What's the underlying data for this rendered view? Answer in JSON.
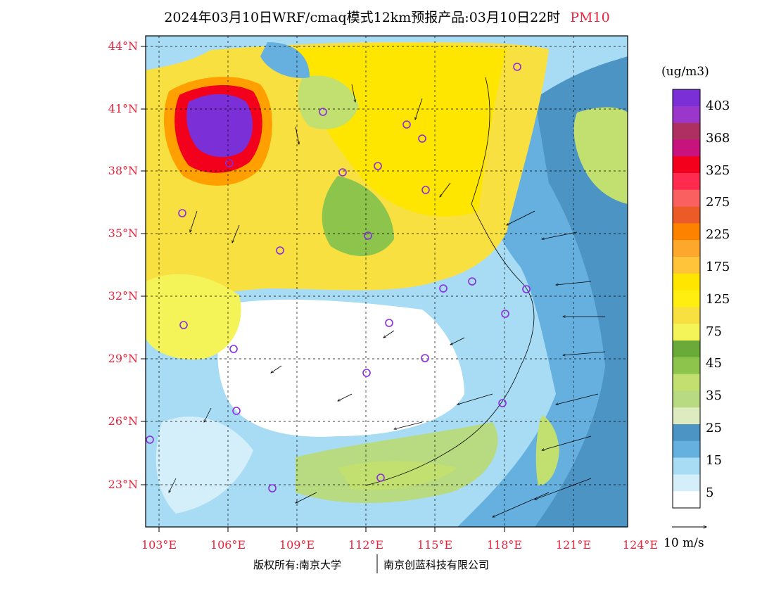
{
  "title": {
    "text": "2024年03月10日WRF/cmaq模式12km预报产品:03月10日22时",
    "pollutant": "PM10"
  },
  "lat_labels": [
    "44°N",
    "41°N",
    "38°N",
    "35°N",
    "32°N",
    "29°N",
    "26°N",
    "23°N"
  ],
  "lon_labels": [
    "103°E",
    "106°E",
    "109°E",
    "112°E",
    "115°E",
    "118°E",
    "121°E",
    "124°E"
  ],
  "colorbar": {
    "unit": "(ug/m3)",
    "labels": [
      "403",
      "368",
      "325",
      "275",
      "225",
      "175",
      "125",
      "75",
      "45",
      "35",
      "25",
      "15",
      "5"
    ],
    "colors": [
      "#7b2fd6",
      "#9a36c9",
      "#ae3060",
      "#c8137e",
      "#f2001c",
      "#ff2a4e",
      "#fa6060",
      "#ec5a28",
      "#fc8200",
      "#fda82c",
      "#ffc43a",
      "#ffe600",
      "#ffee10",
      "#f8e040",
      "#f4f458",
      "#6aaa38",
      "#8cc44c",
      "#c2e070",
      "#b8da80",
      "#dcecc0",
      "#4c94c4",
      "#66b0e0",
      "#a8dcf4",
      "#d4eefa",
      "#ffffff"
    ]
  },
  "wind_scale_label": "10 m/s",
  "copyright": {
    "left": "版权所有:南京大学",
    "right": "南京创蓝科技有限公司"
  },
  "colors": {
    "label_red": "#e8243c",
    "frame": "#000000"
  }
}
